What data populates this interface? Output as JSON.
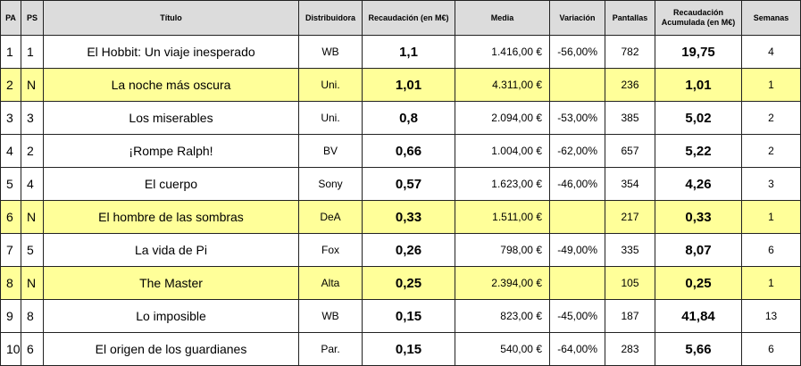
{
  "headers": {
    "pa": "PA",
    "ps": "PS",
    "titulo": "Título",
    "distribuidora": "Distribuidora",
    "recaudacion": "Recaudación (en M€)",
    "media": "Media",
    "variacion": "Variación",
    "pantallas": "Pantallas",
    "acumulada": "Recaudación Acumulada (en M€)",
    "semanas": "Semanas"
  },
  "highlight_color": "#ffff99",
  "rows": [
    {
      "pa": "1",
      "ps": "1",
      "titulo": "El Hobbit: Un viaje inesperado",
      "dist": "WB",
      "rec": "1,1",
      "media": "1.416,00 €",
      "var": "-56,00%",
      "pant": "782",
      "acum": "19,75",
      "sem": "4",
      "new": false
    },
    {
      "pa": "2",
      "ps": "N",
      "titulo": "La noche más oscura",
      "dist": "Uni.",
      "rec": "1,01",
      "media": "4.311,00 €",
      "var": "",
      "pant": "236",
      "acum": "1,01",
      "sem": "1",
      "new": true
    },
    {
      "pa": "3",
      "ps": "3",
      "titulo": "Los miserables",
      "dist": "Uni.",
      "rec": "0,8",
      "media": "2.094,00 €",
      "var": "-53,00%",
      "pant": "385",
      "acum": "5,02",
      "sem": "2",
      "new": false
    },
    {
      "pa": "4",
      "ps": "2",
      "titulo": "¡Rompe Ralph!",
      "dist": "BV",
      "rec": "0,66",
      "media": "1.004,00 €",
      "var": "-62,00%",
      "pant": "657",
      "acum": "5,22",
      "sem": "2",
      "new": false
    },
    {
      "pa": "5",
      "ps": "4",
      "titulo": "El cuerpo",
      "dist": "Sony",
      "rec": "0,57",
      "media": "1.623,00 €",
      "var": "-46,00%",
      "pant": "354",
      "acum": "4,26",
      "sem": "3",
      "new": false
    },
    {
      "pa": "6",
      "ps": "N",
      "titulo": "El hombre de las sombras",
      "dist": "DeA",
      "rec": "0,33",
      "media": "1.511,00 €",
      "var": "",
      "pant": "217",
      "acum": "0,33",
      "sem": "1",
      "new": true
    },
    {
      "pa": "7",
      "ps": "5",
      "titulo": "La vida de Pi",
      "dist": "Fox",
      "rec": "0,26",
      "media": "798,00 €",
      "var": "-49,00%",
      "pant": "335",
      "acum": "8,07",
      "sem": "6",
      "new": false
    },
    {
      "pa": "8",
      "ps": "N",
      "titulo": "The Master",
      "dist": "Alta",
      "rec": "0,25",
      "media": "2.394,00 €",
      "var": "",
      "pant": "105",
      "acum": "0,25",
      "sem": "1",
      "new": true
    },
    {
      "pa": "9",
      "ps": "8",
      "titulo": "Lo imposible",
      "dist": "WB",
      "rec": "0,15",
      "media": "823,00 €",
      "var": "-45,00%",
      "pant": "187",
      "acum": "41,84",
      "sem": "13",
      "new": false
    },
    {
      "pa": "10",
      "ps": "6",
      "titulo": "El origen de los guardianes",
      "dist": "Par.",
      "rec": "0,15",
      "media": "540,00 €",
      "var": "-64,00%",
      "pant": "283",
      "acum": "5,66",
      "sem": "6",
      "new": false
    }
  ]
}
